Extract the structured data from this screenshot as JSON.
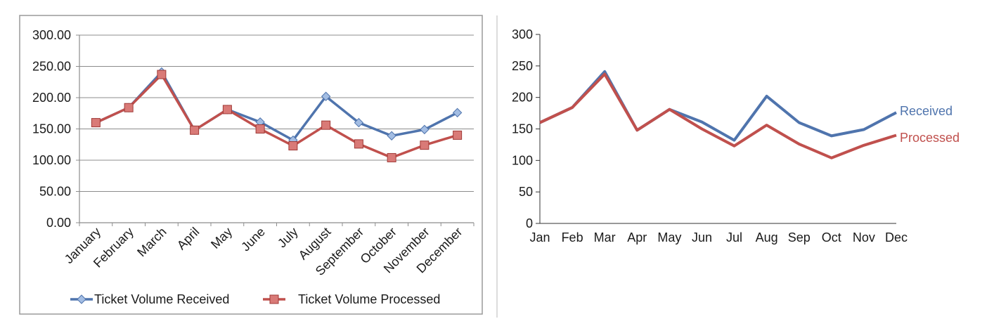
{
  "chart_data": [
    {
      "type": "line",
      "categories": [
        "January",
        "February",
        "March",
        "April",
        "May",
        "June",
        "July",
        "August",
        "September",
        "October",
        "November",
        "December"
      ],
      "series": [
        {
          "name": "Ticket Volume Received",
          "values": [
            160,
            184,
            241,
            148,
            181,
            161,
            132,
            202,
            160,
            139,
            149,
            176
          ],
          "color": "#4f74ad",
          "marker": "diamond"
        },
        {
          "name": "Ticket Volume Processed",
          "values": [
            160,
            184,
            237,
            148,
            181,
            150,
            123,
            156,
            126,
            104,
            124,
            140
          ],
          "color": "#c0504d",
          "marker": "square"
        }
      ],
      "yticks": [
        "0.00",
        "50.00",
        "100.00",
        "150.00",
        "200.00",
        "250.00",
        "300.00"
      ],
      "ylim": [
        0,
        300
      ],
      "grid": true,
      "legend": "bottom"
    },
    {
      "type": "line",
      "categories": [
        "Jan",
        "Feb",
        "Mar",
        "Apr",
        "May",
        "Jun",
        "Jul",
        "Aug",
        "Sep",
        "Oct",
        "Nov",
        "Dec"
      ],
      "series": [
        {
          "name": "Received",
          "values": [
            160,
            184,
            241,
            148,
            181,
            161,
            132,
            202,
            160,
            139,
            149,
            176
          ],
          "color": "#4f74ad"
        },
        {
          "name": "Processed",
          "values": [
            160,
            184,
            237,
            148,
            181,
            150,
            123,
            156,
            126,
            104,
            124,
            140
          ],
          "color": "#c0504d"
        }
      ],
      "yticks": [
        "0",
        "50",
        "100",
        "150",
        "200",
        "250",
        "300"
      ],
      "ylim": [
        0,
        300
      ],
      "grid": false,
      "legend": "direct labels at line ends"
    }
  ]
}
